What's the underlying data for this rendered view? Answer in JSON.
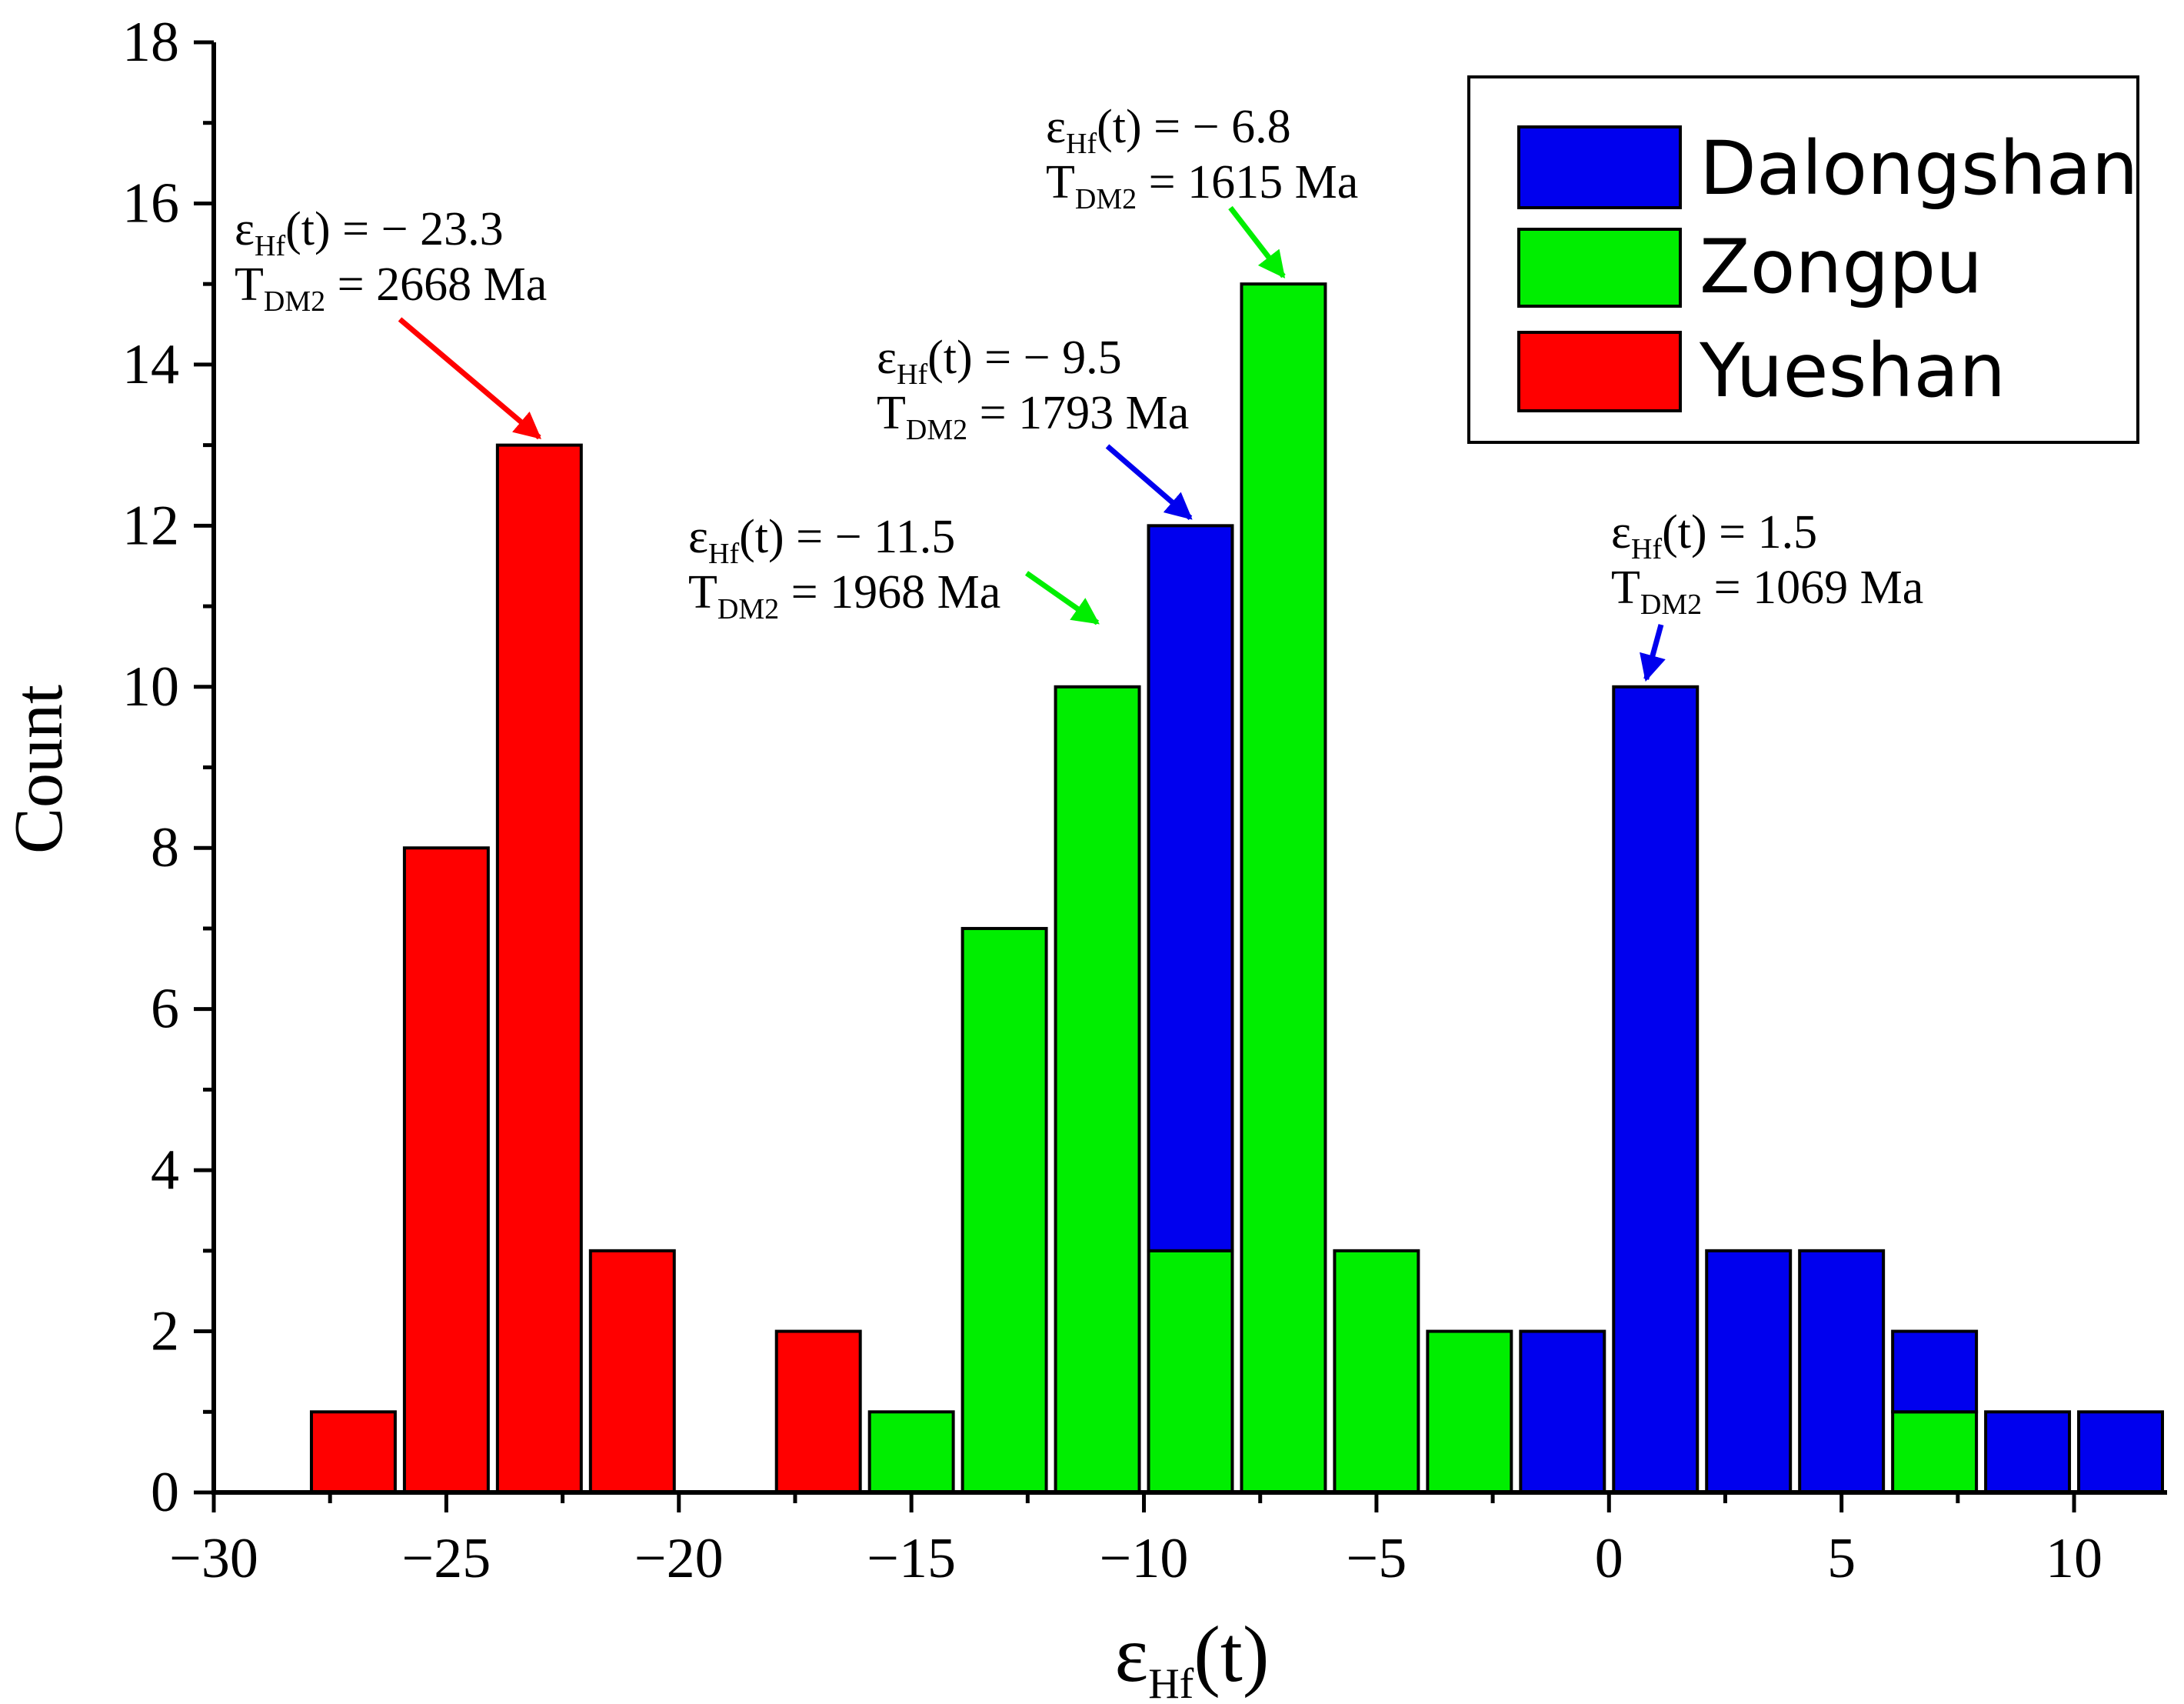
{
  "chart_data": {
    "type": "bar",
    "stacked": true,
    "xlabel": {
      "symbol": "ε",
      "subscript": "Hf",
      "suffix": "(t)"
    },
    "ylabel": "Count",
    "xlim": [
      -30,
      12
    ],
    "ylim": [
      0,
      18
    ],
    "bin_width": 2,
    "x_ticks": [
      {
        "value": -30,
        "label": "−30"
      },
      {
        "value": -25,
        "label": "−25"
      },
      {
        "value": -20,
        "label": "−20"
      },
      {
        "value": -15,
        "label": "−15"
      },
      {
        "value": -10,
        "label": "−10"
      },
      {
        "value": -5,
        "label": "−5"
      },
      {
        "value": 0,
        "label": "0"
      },
      {
        "value": 5,
        "label": "5"
      },
      {
        "value": 10,
        "label": "10"
      }
    ],
    "y_ticks": [
      0,
      2,
      4,
      6,
      8,
      10,
      12,
      14,
      16,
      18
    ],
    "series": [
      {
        "name": "Yueshan",
        "color": "#ff0000",
        "bars": [
          {
            "x0": -28,
            "x1": -26,
            "value": 1
          },
          {
            "x0": -26,
            "x1": -24,
            "value": 8
          },
          {
            "x0": -24,
            "x1": -22,
            "value": 13
          },
          {
            "x0": -22,
            "x1": -20,
            "value": 3
          },
          {
            "x0": -18,
            "x1": -16,
            "value": 2
          }
        ]
      },
      {
        "name": "Zongpu",
        "color": "#00ee00",
        "bars": [
          {
            "x0": -16,
            "x1": -14,
            "value": 1
          },
          {
            "x0": -14,
            "x1": -12,
            "value": 7
          },
          {
            "x0": -12,
            "x1": -10,
            "value": 10
          },
          {
            "x0": -10,
            "x1": -8,
            "value": 3
          },
          {
            "x0": -8,
            "x1": -6,
            "value": 15
          },
          {
            "x0": -6,
            "x1": -4,
            "value": 3
          },
          {
            "x0": -4,
            "x1": -2,
            "value": 2
          },
          {
            "x0": 6,
            "x1": 8,
            "value": 1
          }
        ]
      },
      {
        "name": "Dalongshan",
        "color": "#0000ee",
        "bars": [
          {
            "x0": -10,
            "x1": -8,
            "value": 9,
            "base": 3
          },
          {
            "x0": -2,
            "x1": 0,
            "value": 2
          },
          {
            "x0": 0,
            "x1": 2,
            "value": 10
          },
          {
            "x0": 2,
            "x1": 4,
            "value": 3
          },
          {
            "x0": 4,
            "x1": 6,
            "value": 3
          },
          {
            "x0": 6,
            "x1": 8,
            "value": 1,
            "base": 1
          },
          {
            "x0": 8,
            "x1": 10,
            "value": 1
          },
          {
            "x0": 10,
            "x1": 12,
            "value": 1
          }
        ]
      }
    ],
    "legend": {
      "position": "top-right",
      "entries": [
        {
          "label": "Dalongshan",
          "color": "#0000ee"
        },
        {
          "label": "Zongpu",
          "color": "#00ee00"
        },
        {
          "label": "Yueshan",
          "color": "#ff0000"
        }
      ]
    },
    "annotations": [
      {
        "id": "yueshan-peak",
        "line1": {
          "prefix": "ε",
          "sub": "Hf",
          "suffix": "(t) = − 23.3"
        },
        "line2": {
          "prefix": "T",
          "sub": "DM2",
          "suffix": " = 2668 Ma"
        },
        "color": "#ff0000",
        "target": {
          "x": -23,
          "y": 13
        }
      },
      {
        "id": "zongpu-left",
        "line1": {
          "prefix": "ε",
          "sub": "Hf",
          "suffix": "(t) = − 11.5"
        },
        "line2": {
          "prefix": "T",
          "sub": "DM2",
          "suffix": " = 1968 Ma"
        },
        "color": "#00ee00",
        "target": {
          "x": -11,
          "y": 10.7
        }
      },
      {
        "id": "dalongshan-left",
        "line1": {
          "prefix": "ε",
          "sub": "Hf",
          "suffix": "(t) = − 9.5"
        },
        "line2": {
          "prefix": "T",
          "sub": "DM2",
          "suffix": " = 1793 Ma"
        },
        "color": "#0000ee",
        "target": {
          "x": -9,
          "y": 12
        }
      },
      {
        "id": "zongpu-peak",
        "line1": {
          "prefix": "ε",
          "sub": "Hf",
          "suffix": "(t) = − 6.8"
        },
        "line2": {
          "prefix": "T",
          "sub": "DM2",
          "suffix": " = 1615 Ma"
        },
        "color": "#00ee00",
        "target": {
          "x": -7,
          "y": 15
        }
      },
      {
        "id": "dalongshan-right",
        "line1": {
          "prefix": "ε",
          "sub": "Hf",
          "suffix": "(t) = 1.5"
        },
        "line2": {
          "prefix": "T",
          "sub": "DM2",
          "suffix": " = 1069 Ma"
        },
        "color": "#0000ee",
        "target": {
          "x": 0.8,
          "y": 10
        }
      }
    ]
  }
}
